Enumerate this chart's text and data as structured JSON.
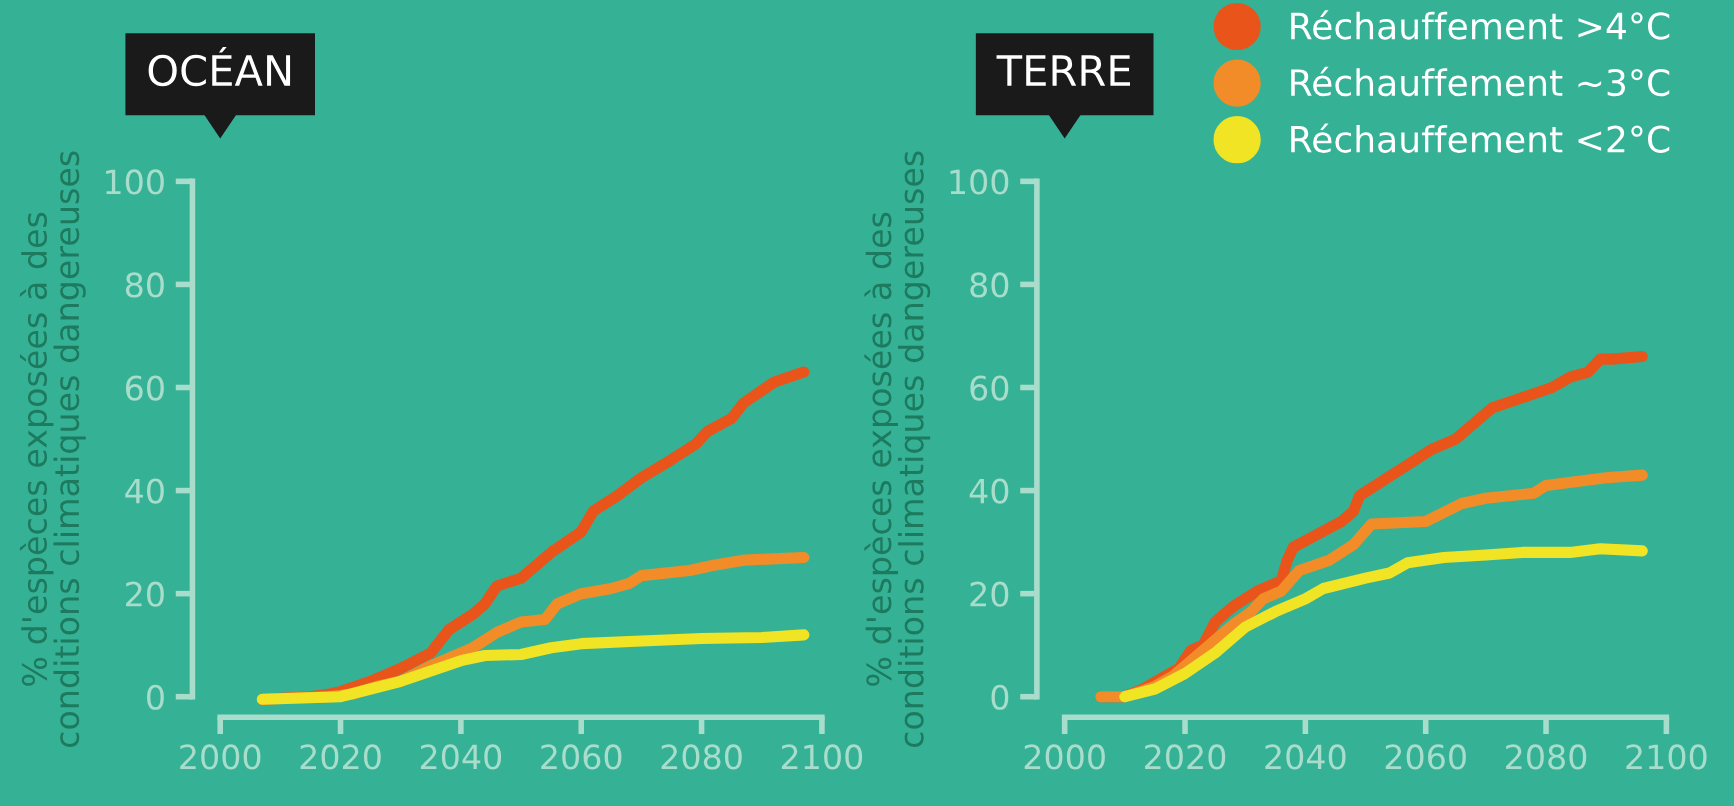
{
  "chart_data": [
    {
      "type": "line",
      "title": "OCÉAN",
      "ylabel": "% d'espèces exposées à des\nconditions climatiques dangereuses",
      "xlim": [
        2000,
        2100
      ],
      "xticks": [
        2000,
        2020,
        2040,
        2060,
        2080,
        2100
      ],
      "ylim": [
        -4,
        100
      ],
      "yticks": [
        0,
        20,
        40,
        60,
        80,
        100
      ],
      "grid": false,
      "legend": false,
      "series": [
        {
          "color": "#e8541a",
          "x": [
            2007,
            2015,
            2018,
            2020,
            2025,
            2030,
            2035,
            2038,
            2042,
            2044,
            2046,
            2050,
            2055,
            2060,
            2062,
            2066,
            2070,
            2075,
            2079,
            2081,
            2085,
            2087,
            2092,
            2097
          ],
          "values": [
            -0.5,
            0,
            0.5,
            1,
            3,
            5.5,
            8.5,
            13,
            16,
            18,
            21.5,
            23,
            28,
            32,
            36,
            39,
            42.5,
            46,
            49,
            51.5,
            54,
            57,
            61,
            63
          ]
        },
        {
          "color": "#f28c28",
          "x": [
            2007,
            2018,
            2022,
            2026,
            2030,
            2035,
            2038,
            2042,
            2046,
            2050,
            2054,
            2056,
            2060,
            2065,
            2068,
            2070,
            2078,
            2082,
            2087,
            2097
          ],
          "values": [
            -0.5,
            0,
            0.5,
            2,
            3,
            6,
            7.5,
            9.5,
            12.5,
            14.5,
            15,
            18,
            20,
            21,
            22,
            23.5,
            24.5,
            25.5,
            26.5,
            27
          ]
        },
        {
          "color": "#f0e424",
          "x": [
            2007,
            2020,
            2025,
            2030,
            2035,
            2040,
            2044,
            2050,
            2055,
            2060,
            2070,
            2080,
            2090,
            2097
          ],
          "values": [
            -0.5,
            0,
            1.5,
            3,
            5,
            7,
            8,
            8.2,
            9.5,
            10.3,
            10.8,
            11.3,
            11.5,
            12
          ]
        }
      ]
    },
    {
      "type": "line",
      "title": "TERRE",
      "ylabel": "% d'espèces exposées à des\nconditions climatiques dangereuses",
      "xlim": [
        2000,
        2100
      ],
      "xticks": [
        2000,
        2020,
        2040,
        2060,
        2080,
        2100
      ],
      "ylim": [
        -4,
        100
      ],
      "yticks": [
        0,
        20,
        40,
        60,
        80,
        100
      ],
      "grid": false,
      "legend": "top right",
      "series": [
        {
          "name": "Réchauffement >4°C",
          "color": "#e8541a",
          "x": [
            2006,
            2010,
            2013,
            2016,
            2019,
            2021,
            2023,
            2025,
            2028,
            2032,
            2036,
            2037,
            2038,
            2042,
            2046,
            2048,
            2049,
            2053,
            2057,
            2061,
            2065,
            2068,
            2071,
            2076,
            2081,
            2084,
            2087,
            2089,
            2091,
            2096
          ],
          "values": [
            0,
            0,
            1.5,
            3.5,
            5.5,
            9,
            10,
            14.5,
            17.5,
            20.5,
            22.5,
            26.5,
            29,
            31.5,
            34,
            36,
            39,
            42,
            45,
            48,
            50,
            53,
            56,
            58,
            60,
            62,
            63,
            65.5,
            65.5,
            66
          ]
        },
        {
          "name": "Réchauffement ~3°C",
          "color": "#f28c28",
          "x": [
            2006,
            2010,
            2015,
            2018,
            2021,
            2024,
            2028,
            2031,
            2033,
            2036,
            2039,
            2044,
            2048,
            2051,
            2060,
            2066,
            2070,
            2078,
            2080,
            2090,
            2096
          ],
          "values": [
            0,
            0,
            2,
            4,
            7,
            10,
            14,
            16.5,
            19,
            20.5,
            24.5,
            26.5,
            29.5,
            33.5,
            34,
            37.5,
            38.5,
            39.5,
            41,
            42.5,
            43
          ]
        },
        {
          "name": "Réchauffement <2°C",
          "color": "#f0e424",
          "x": [
            2010,
            2015,
            2020,
            2025,
            2030,
            2035,
            2040,
            2043,
            2050,
            2054,
            2057,
            2063,
            2070,
            2076,
            2084,
            2089,
            2096
          ],
          "values": [
            0,
            1.5,
            4.5,
            8.5,
            13.5,
            16.5,
            19,
            21,
            23,
            24,
            26,
            27,
            27.5,
            28,
            28,
            28.7,
            28.3
          ]
        }
      ]
    }
  ]
}
